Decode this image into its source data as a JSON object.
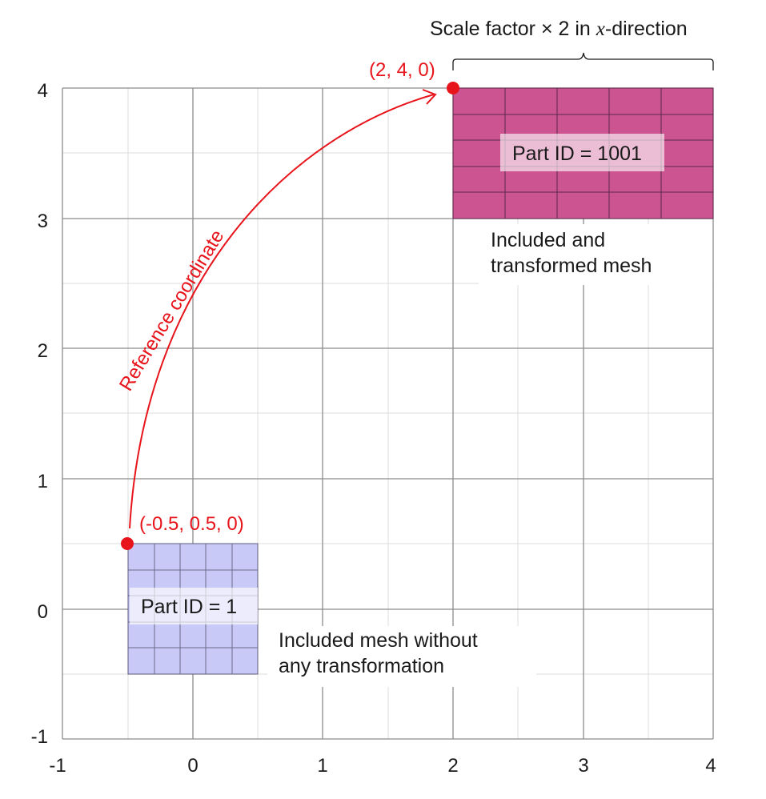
{
  "axes": {
    "x_ticks": [
      "-1",
      "0",
      "1",
      "2",
      "3",
      "4"
    ],
    "y_ticks": [
      "-1",
      "0",
      "1",
      "2",
      "3",
      "4"
    ]
  },
  "annotations": {
    "scale_label": {
      "prefix": "Scale factor ",
      "operator": "×",
      "factor": "2",
      "in": " in ",
      "var": "x",
      "suffix": "-direction"
    },
    "target_point_label": "(2, 4, 0)",
    "source_point_label": "(-0.5, 0.5, 0)",
    "arrow_label": "Reference coordinate",
    "part_transformed": "Part ID = 1001",
    "part_original": "Part ID = 1",
    "transformed_caption_line1": "Included and",
    "transformed_caption_line2": "transformed mesh",
    "original_caption_line1": "Included mesh without",
    "original_caption_line2": "any transformation"
  },
  "colors": {
    "grid_major": "#8c8c8c",
    "grid_minor": "#d9d9d9",
    "transformed_mesh": "#cc5490",
    "original_mesh": "#c9c9f7",
    "mesh_line": "#5a2a4a",
    "accent_red": "#e8141b"
  }
}
